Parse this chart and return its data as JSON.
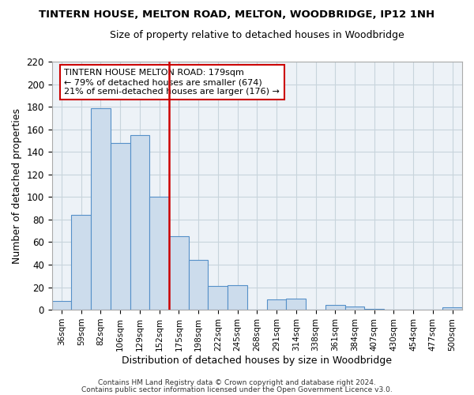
{
  "title": "TINTERN HOUSE, MELTON ROAD, MELTON, WOODBRIDGE, IP12 1NH",
  "subtitle": "Size of property relative to detached houses in Woodbridge",
  "xlabel": "Distribution of detached houses by size in Woodbridge",
  "ylabel": "Number of detached properties",
  "bar_color": "#ccdcec",
  "bar_edge_color": "#5590c8",
  "highlight_line_color": "#cc0000",
  "annotation_text": "TINTERN HOUSE MELTON ROAD: 179sqm\n← 79% of detached houses are smaller (674)\n21% of semi-detached houses are larger (176) →",
  "footer1": "Contains HM Land Registry data © Crown copyright and database right 2024.",
  "footer2": "Contains public sector information licensed under the Open Government Licence v3.0.",
  "categories": [
    "36sqm",
    "59sqm",
    "82sqm",
    "106sqm",
    "129sqm",
    "152sqm",
    "175sqm",
    "198sqm",
    "222sqm",
    "245sqm",
    "268sqm",
    "291sqm",
    "314sqm",
    "338sqm",
    "361sqm",
    "384sqm",
    "407sqm",
    "430sqm",
    "454sqm",
    "477sqm",
    "500sqm"
  ],
  "values": [
    8,
    84,
    179,
    148,
    155,
    100,
    65,
    44,
    21,
    22,
    0,
    9,
    10,
    0,
    4,
    3,
    1,
    0,
    0,
    0,
    2
  ],
  "highlight_bar_idx": 6,
  "ylim": [
    0,
    220
  ],
  "yticks": [
    0,
    20,
    40,
    60,
    80,
    100,
    120,
    140,
    160,
    180,
    200,
    220
  ],
  "grid_color": "#c8d4dc",
  "background_color": "#edf2f7"
}
